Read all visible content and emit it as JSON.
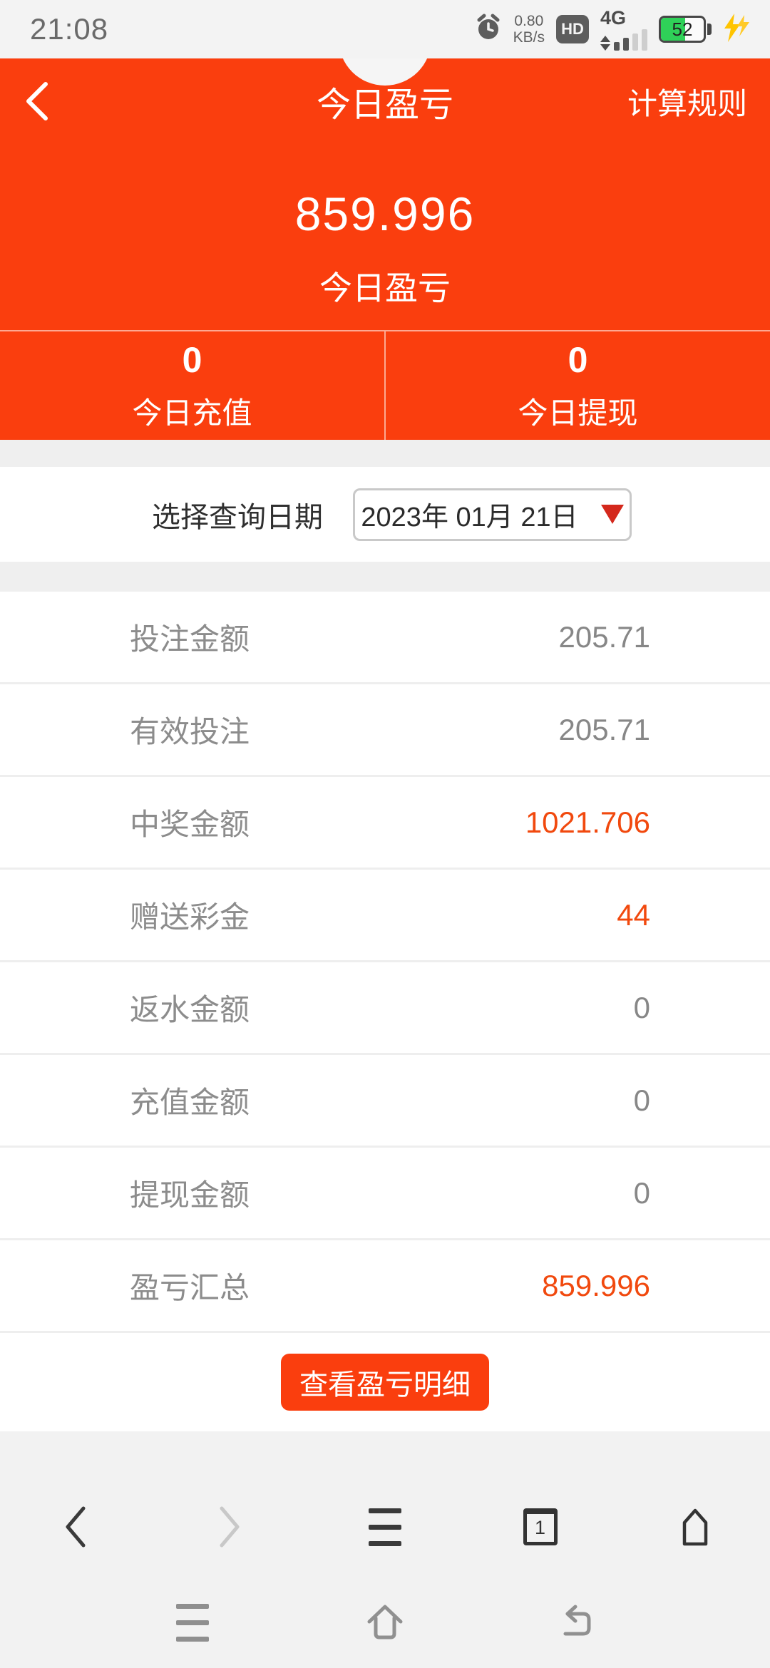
{
  "status_bar": {
    "time": "21:08",
    "network_speed": {
      "value": "0.80",
      "unit": "KB/s"
    },
    "hd_badge": "HD",
    "network_type": "4G",
    "battery_level": "52"
  },
  "header": {
    "title": "今日盈亏",
    "rules_link": "计算规则",
    "amount": "859.996",
    "amount_label": "今日盈亏",
    "stats": [
      {
        "value": "0",
        "label": "今日充值"
      },
      {
        "value": "0",
        "label": "今日提现"
      }
    ]
  },
  "date_picker": {
    "label": "选择查询日期",
    "value": "2023年 01月 21日"
  },
  "summary_rows": [
    {
      "label": "投注金额",
      "value": "205.71",
      "highlight": false
    },
    {
      "label": "有效投注",
      "value": "205.71",
      "highlight": false
    },
    {
      "label": "中奖金额",
      "value": "1021.706",
      "highlight": true
    },
    {
      "label": "赠送彩金",
      "value": "44",
      "highlight": true
    },
    {
      "label": "返水金额",
      "value": "0",
      "highlight": false
    },
    {
      "label": "充值金额",
      "value": "0",
      "highlight": false
    },
    {
      "label": "提现金额",
      "value": "0",
      "highlight": false
    },
    {
      "label": "盈亏汇总",
      "value": "859.996",
      "highlight": true
    }
  ],
  "detail_button_label": "查看盈亏明细",
  "browser_nav": {
    "tab_count": "1"
  },
  "colors": {
    "accent_orange": "#fa3e0e",
    "highlight_value": "#f1490e",
    "triangle_red": "#d4281c",
    "battery_green": "#2fd158"
  }
}
